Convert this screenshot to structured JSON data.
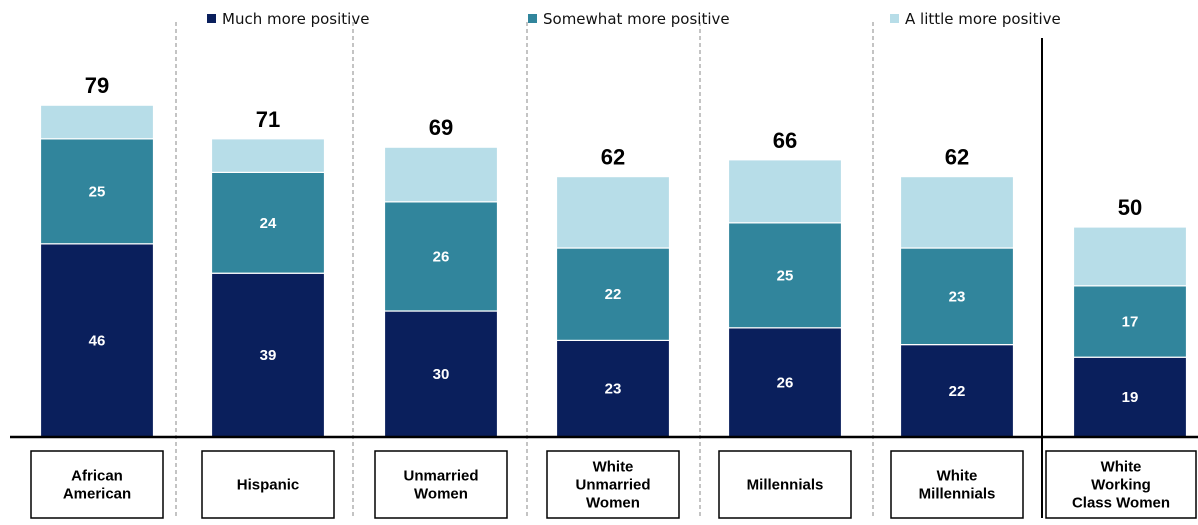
{
  "chart_data": {
    "type": "bar",
    "stacked": true,
    "categories": [
      [
        "African",
        "American"
      ],
      [
        "Hispanic"
      ],
      [
        "Unmarried",
        "Women"
      ],
      [
        "White",
        "Unmarried",
        "Women"
      ],
      [
        "Millennials"
      ],
      [
        "White",
        "Millennials"
      ],
      [
        "White",
        "Working",
        "Class Women"
      ]
    ],
    "totals": [
      "79",
      "71",
      "69",
      "62",
      "66",
      "62",
      "50"
    ],
    "series": [
      {
        "name": "Much more positive",
        "color": "#0a1f5c",
        "values": [
          46,
          39,
          30,
          23,
          26,
          22,
          19
        ],
        "labels": [
          "46",
          "39",
          "30",
          "23",
          "26",
          "22",
          "19"
        ]
      },
      {
        "name": "Somewhat more positive",
        "color": "#31859c",
        "values": [
          25,
          24,
          26,
          22,
          25,
          23,
          17
        ],
        "labels": [
          "25",
          "24",
          "26",
          "22",
          "25",
          "23",
          "17"
        ]
      },
      {
        "name": "A little more positive",
        "color": "#b7dde8",
        "values": [
          8,
          8,
          13,
          17,
          15,
          17,
          14
        ]
      }
    ],
    "ylim": [
      0,
      90
    ],
    "grid": false,
    "legend_position": "top"
  }
}
